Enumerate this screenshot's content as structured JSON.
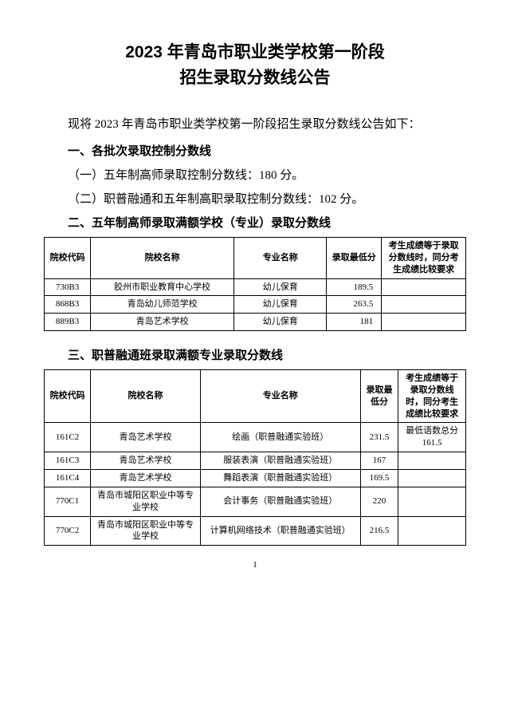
{
  "title_line1": "2023 年青岛市职业类学校第一阶段",
  "title_line2": "招生录取分数线公告",
  "intro": "现将 2023 年青岛市职业类学校第一阶段招生录取分数线公告如下：",
  "section1_head": "一、各批次录取控制分数线",
  "section1_item1": "（一）五年制高师录取控制分数线：180 分。",
  "section1_item2": "（二）职普融通和五年制高职录取控制分数线：102 分。",
  "section2_head": "二、五年制高师录取满额学校（专业）录取分数线",
  "table1": {
    "headers": {
      "code": "院校代码",
      "school": "院校名称",
      "major": "专业名称",
      "score": "录取最低分",
      "note": "考生成绩等于录取分数线时，同分考生成绩比较要求"
    },
    "rows": [
      {
        "code": "730B3",
        "school": "胶州市职业教育中心学校",
        "major": "幼儿保育",
        "score": "189.5",
        "note": ""
      },
      {
        "code": "868B3",
        "school": "青岛幼儿师范学校",
        "major": "幼儿保育",
        "score": "263.5",
        "note": ""
      },
      {
        "code": "889B3",
        "school": "青岛艺术学校",
        "major": "幼儿保育",
        "score": "181",
        "note": ""
      }
    ]
  },
  "section3_head": "三、职普融通班录取满额专业录取分数线",
  "table2": {
    "headers": {
      "code": "院校代码",
      "school": "院校名称",
      "major": "专业名称",
      "score": "录取最低分",
      "note": "考生成绩等于录取分数线时，同分考生成绩比较要求"
    },
    "rows": [
      {
        "code": "161C2",
        "school": "青岛艺术学校",
        "major": "绘画（职普融通实验班）",
        "score": "231.5",
        "note": "最低语数总分161.5"
      },
      {
        "code": "161C3",
        "school": "青岛艺术学校",
        "major": "服装表演（职普融通实验班）",
        "score": "167",
        "note": ""
      },
      {
        "code": "161C4",
        "school": "青岛艺术学校",
        "major": "舞蹈表演（职普融通实验班）",
        "score": "169.5",
        "note": ""
      },
      {
        "code": "770C1",
        "school": "青岛市城阳区职业中等专业学校",
        "major": "会计事务（职普融通实验班）",
        "score": "220",
        "note": ""
      },
      {
        "code": "770C2",
        "school": "青岛市城阳区职业中等专业学校",
        "major": "计算机网络技术（职普融通实验班）",
        "score": "216.5",
        "note": ""
      }
    ]
  },
  "page_number": "1"
}
